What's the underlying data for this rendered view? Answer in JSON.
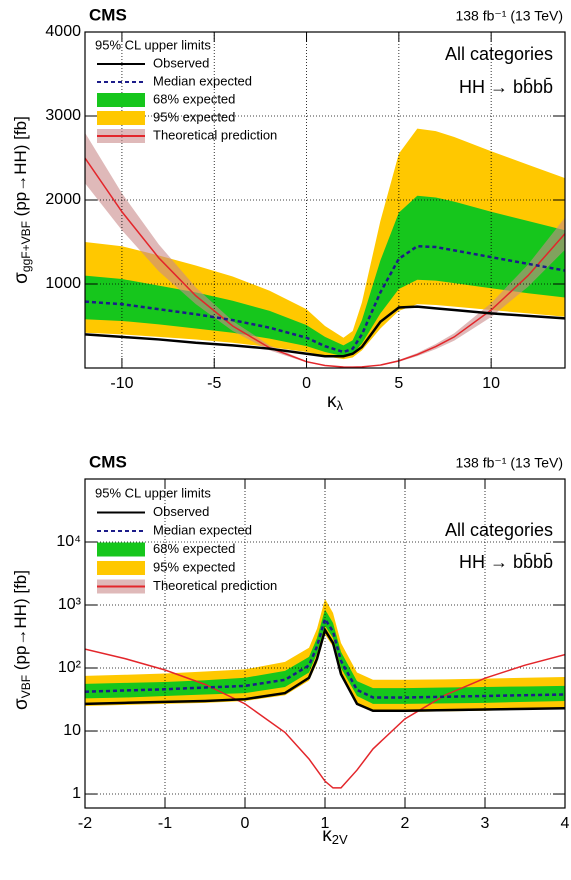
{
  "chart_data": [
    {
      "type": "line",
      "title": "CMS",
      "lumi": "138 fb⁻¹ (13 TeV)",
      "annotations": [
        "All categories",
        "HH → bb̄bb̄"
      ],
      "x_label": {
        "symbol": "κ",
        "subscript": "λ"
      },
      "y_label": {
        "symbol": "σ",
        "subscript": "ggF+VBF",
        "rest": " (pp→HH) [fb]"
      },
      "legend_title": "95% CL upper limits",
      "log_y": false,
      "grid": true,
      "xlim": [
        -12,
        14
      ],
      "xticks": [
        -10,
        -5,
        0,
        5,
        10
      ],
      "ylim": [
        0,
        4000
      ],
      "yticks": [
        1000,
        2000,
        3000,
        4000
      ],
      "x": [
        -12,
        -10,
        -8,
        -6,
        -4,
        -2,
        0,
        1,
        2,
        2.5,
        3,
        4,
        5,
        6,
        7,
        8,
        10,
        12,
        14
      ],
      "series": [
        {
          "name": "Observed",
          "color": "#000000",
          "style": "solid",
          "values": [
            400,
            370,
            340,
            300,
            270,
            230,
            170,
            140,
            140,
            170,
            250,
            550,
            720,
            730,
            710,
            690,
            650,
            620,
            590
          ]
        },
        {
          "name": "Median expected",
          "color": "#1c1c8a",
          "style": "dashed",
          "values": [
            790,
            760,
            700,
            640,
            570,
            480,
            360,
            260,
            190,
            230,
            400,
            900,
            1300,
            1450,
            1440,
            1400,
            1320,
            1240,
            1160
          ]
        },
        {
          "name": "68% expected",
          "color": "#16c61c",
          "style": "band",
          "lower": [
            580,
            560,
            520,
            470,
            420,
            350,
            260,
            190,
            140,
            170,
            290,
            650,
            940,
            1050,
            1040,
            1010,
            950,
            890,
            840
          ],
          "upper": [
            1100,
            1060,
            980,
            900,
            800,
            680,
            510,
            370,
            270,
            330,
            570,
            1280,
            1850,
            2050,
            2030,
            1980,
            1860,
            1750,
            1640
          ]
        },
        {
          "name": "95% expected",
          "color": "#ffc800",
          "style": "band",
          "lower": [
            420,
            400,
            370,
            340,
            300,
            250,
            190,
            140,
            105,
            125,
            210,
            470,
            680,
            760,
            750,
            730,
            690,
            650,
            610
          ],
          "upper": [
            1500,
            1450,
            1340,
            1220,
            1090,
            920,
            700,
            500,
            360,
            440,
            780,
            1750,
            2550,
            2850,
            2820,
            2750,
            2580,
            2420,
            2260
          ]
        },
        {
          "name": "Theoretical prediction",
          "color": "#e3262b",
          "band_color": "#c98a8a",
          "style": "solid",
          "values": [
            2500,
            1860,
            1310,
            860,
            500,
            240,
            75,
            30,
            12,
            10,
            14,
            35,
            85,
            160,
            255,
            370,
            690,
            1100,
            1600
          ],
          "lower": [
            2200,
            1640,
            1150,
            760,
            440,
            210,
            66,
            26,
            10.5,
            8.8,
            12.3,
            31,
            75,
            141,
            224,
            326,
            607,
            968,
            1408
          ],
          "upper": [
            2800,
            2080,
            1470,
            960,
            560,
            270,
            84,
            34,
            13.4,
            11.2,
            15.7,
            39,
            95,
            179,
            286,
            414,
            773,
            1232,
            1792
          ]
        }
      ]
    },
    {
      "type": "line",
      "title": "CMS",
      "lumi": "138 fb⁻¹ (13 TeV)",
      "annotations": [
        "All categories",
        "HH → bb̄bb̄"
      ],
      "x_label": {
        "symbol": "κ",
        "subscript": "2V"
      },
      "y_label": {
        "symbol": "σ",
        "subscript": "VBF",
        "rest": " (pp→HH) [fb]"
      },
      "legend_title": "95% CL upper limits",
      "log_y": true,
      "grid": true,
      "xlim": [
        -2,
        4
      ],
      "xticks": [
        -2,
        -1,
        0,
        1,
        2,
        3,
        4
      ],
      "ylim": [
        0.6,
        100000
      ],
      "yticks": [
        1,
        10,
        {
          "value": 100,
          "label": "10²"
        },
        {
          "value": 1000,
          "label": "10³"
        },
        {
          "value": 10000,
          "label": "10⁴"
        }
      ],
      "x": [
        -2,
        -1.5,
        -1,
        -0.5,
        0,
        0.5,
        0.8,
        0.9,
        1,
        1.1,
        1.2,
        1.4,
        1.6,
        2,
        2.5,
        3,
        3.5,
        4
      ],
      "series": [
        {
          "name": "Observed",
          "color": "#000000",
          "style": "solid",
          "values": [
            27,
            28,
            29,
            30,
            32,
            40,
            70,
            140,
            400,
            250,
            80,
            27,
            21,
            21,
            21.5,
            22,
            22.5,
            23
          ]
        },
        {
          "name": "Median expected",
          "color": "#1c1c8a",
          "style": "dashed",
          "values": [
            42,
            44,
            46,
            49,
            52,
            65,
            110,
            220,
            600,
            380,
            130,
            45,
            34,
            34,
            35,
            36,
            37,
            38
          ]
        },
        {
          "name": "68% expected",
          "color": "#16c61c",
          "style": "band",
          "lower": [
            33,
            34,
            36,
            38,
            40,
            50,
            85,
            170,
            470,
            300,
            100,
            36,
            27,
            27,
            27.5,
            28,
            29,
            30
          ],
          "upper": [
            56,
            58,
            60,
            64,
            70,
            90,
            150,
            300,
            850,
            520,
            180,
            62,
            48,
            48,
            49,
            50,
            51,
            52
          ]
        },
        {
          "name": "95% expected",
          "color": "#ffc800",
          "style": "band",
          "lower": [
            25,
            26,
            27,
            28,
            30,
            37,
            63,
            120,
            340,
            220,
            75,
            27,
            20,
            20,
            20.5,
            21,
            22,
            23
          ],
          "upper": [
            75,
            78,
            82,
            88,
            95,
            125,
            210,
            420,
            1250,
            750,
            250,
            85,
            65,
            65,
            66,
            68,
            70,
            72
          ]
        },
        {
          "name": "Theoretical prediction",
          "color": "#e3262b",
          "band_color": "#c98a8a",
          "style": "solid",
          "values": [
            200,
            141,
            93,
            55,
            27,
            9.5,
            3.6,
            2.4,
            1.6,
            1.25,
            1.25,
            2.4,
            5.2,
            15.6,
            37,
            69,
            111,
            163
          ]
        }
      ]
    }
  ]
}
